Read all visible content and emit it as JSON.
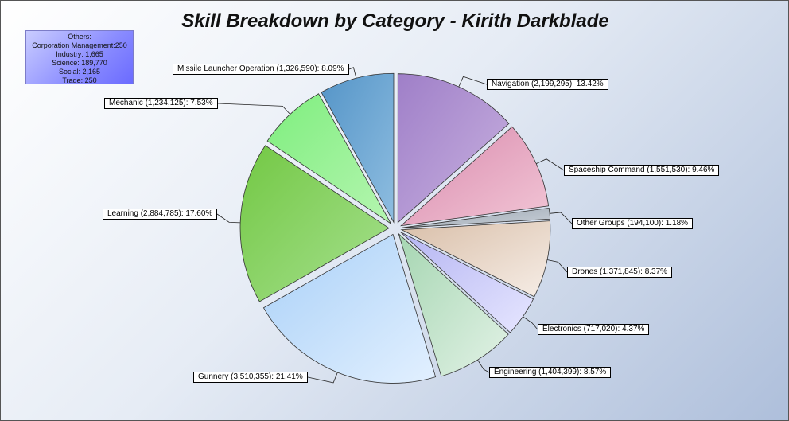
{
  "chart_data": {
    "type": "pie",
    "title": "Skill Breakdown by Category - Kirith Darkblade",
    "others_box": {
      "heading": "Others:",
      "items": [
        "Corporation Management:250",
        "Industry: 1,665",
        "Science: 189,770",
        "Social: 2,165",
        "Trade: 250"
      ]
    },
    "slices": [
      {
        "label": "Navigation (2,199,295): 13.42%",
        "name": "Navigation",
        "value": 2199295,
        "percent": 13.42,
        "color_light": "#c9b2e0",
        "color_dark": "#9f7fc8"
      },
      {
        "label": "Spaceship Command (1,551,530): 9.46%",
        "name": "Spaceship Command",
        "value": 1551530,
        "percent": 9.46,
        "color_light": "#f2c6d6",
        "color_dark": "#d98aad"
      },
      {
        "label": "Other Groups (194,100): 1.18%",
        "name": "Other Groups",
        "value": 194100,
        "percent": 1.18,
        "color_light": "#c9d0d8",
        "color_dark": "#9aa5b0"
      },
      {
        "label": "Drones (1,371,845): 8.37%",
        "name": "Drones",
        "value": 1371845,
        "percent": 8.37,
        "color_light": "#f6ede6",
        "color_dark": "#d9bfa9"
      },
      {
        "label": "Electronics (717,020): 4.37%",
        "name": "Electronics",
        "value": 717020,
        "percent": 4.37,
        "color_light": "#e6e6ff",
        "color_dark": "#b5b5f2"
      },
      {
        "label": "Engineering (1,404,399): 8.57%",
        "name": "Engineering",
        "value": 1404399,
        "percent": 8.57,
        "color_light": "#e2f2e6",
        "color_dark": "#a6d6b2"
      },
      {
        "label": "Gunnery (3,510,355): 21.41%",
        "name": "Gunnery",
        "value": 3510355,
        "percent": 21.41,
        "color_light": "#e2f0ff",
        "color_dark": "#a9d0f7"
      },
      {
        "label": "Learning (2,884,785): 17.60%",
        "name": "Learning",
        "value": 2884785,
        "percent": 17.6,
        "color_light": "#a6e08f",
        "color_dark": "#73c844"
      },
      {
        "label": "Mechanic (1,234,125): 7.53%",
        "name": "Mechanic",
        "value": 1234125,
        "percent": 7.53,
        "color_light": "#b5f5b0",
        "color_dark": "#7eee7e"
      },
      {
        "label": "Missile Launcher Operation (1,326,590): 8.09%",
        "name": "Missile Launcher Operation",
        "value": 1326590,
        "percent": 8.09,
        "color_light": "#8ebde0",
        "color_dark": "#5595c8"
      }
    ]
  }
}
